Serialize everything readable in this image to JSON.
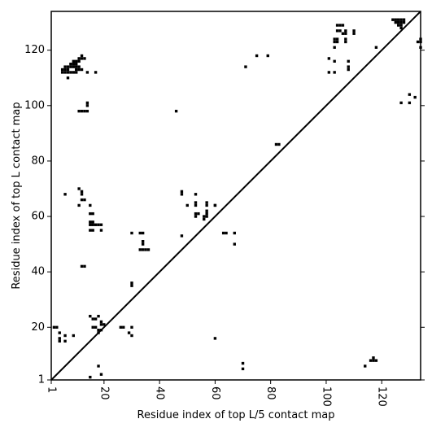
{
  "chart_data": {
    "type": "scatter",
    "title": "",
    "xlabel": "Residue index of top L/5 contact map",
    "ylabel": "Residue index of top L contact map",
    "xlim": [
      1,
      134
    ],
    "ylim": [
      1,
      134
    ],
    "x_ticks": [
      1,
      20,
      40,
      60,
      80,
      100,
      120
    ],
    "y_ticks": [
      1,
      20,
      40,
      60,
      80,
      100,
      120
    ],
    "x_tick_labels": [
      "1",
      "20",
      "40",
      "60",
      "80",
      "100",
      "120"
    ],
    "y_tick_labels": [
      "1",
      "20",
      "40",
      "60",
      "80",
      "100",
      "120"
    ],
    "grid": false,
    "diagonal": true,
    "marker_color": "#000000",
    "series": [
      {
        "points": [
          [
            15,
            2
          ],
          [
            19,
            3
          ],
          [
            18,
            6
          ],
          [
            70,
            5
          ],
          [
            70,
            7
          ],
          [
            114,
            6
          ],
          [
            116,
            8
          ],
          [
            117,
            8
          ],
          [
            118,
            8
          ],
          [
            117,
            9
          ],
          [
            2,
            20
          ],
          [
            3,
            20
          ],
          [
            4,
            15
          ],
          [
            4,
            16
          ],
          [
            4,
            18
          ],
          [
            6,
            15
          ],
          [
            6,
            17
          ],
          [
            9,
            17
          ],
          [
            16,
            20
          ],
          [
            17,
            20
          ],
          [
            18,
            18
          ],
          [
            18,
            19
          ],
          [
            19,
            19
          ],
          [
            19,
            22
          ],
          [
            16,
            23
          ],
          [
            17,
            23
          ],
          [
            15,
            24
          ],
          [
            18,
            24
          ],
          [
            19,
            21
          ],
          [
            20,
            21
          ],
          [
            26,
            20
          ],
          [
            27,
            20
          ],
          [
            30,
            17
          ],
          [
            30,
            20
          ],
          [
            29,
            18
          ],
          [
            30,
            35
          ],
          [
            30,
            36
          ],
          [
            60,
            16
          ],
          [
            33,
            48
          ],
          [
            34,
            48
          ],
          [
            34,
            50
          ],
          [
            34,
            51
          ],
          [
            35,
            48
          ],
          [
            36,
            48
          ],
          [
            30,
            54
          ],
          [
            33,
            54
          ],
          [
            34,
            54
          ],
          [
            15,
            55
          ],
          [
            16,
            55
          ],
          [
            19,
            55
          ],
          [
            15,
            57
          ],
          [
            16,
            57
          ],
          [
            17,
            57
          ],
          [
            18,
            57
          ],
          [
            19,
            57
          ],
          [
            15,
            58
          ],
          [
            16,
            58
          ],
          [
            15,
            61
          ],
          [
            16,
            61
          ],
          [
            11,
            64
          ],
          [
            6,
            68
          ],
          [
            12,
            66
          ],
          [
            13,
            66
          ],
          [
            11,
            70
          ],
          [
            12,
            68
          ],
          [
            12,
            69
          ],
          [
            15,
            64
          ],
          [
            12,
            42
          ],
          [
            13,
            42
          ],
          [
            48,
            53
          ],
          [
            48,
            68
          ],
          [
            48,
            69
          ],
          [
            50,
            64
          ],
          [
            53,
            60
          ],
          [
            53,
            61
          ],
          [
            54,
            61
          ],
          [
            53,
            64
          ],
          [
            53,
            65
          ],
          [
            53,
            68
          ],
          [
            56,
            60
          ],
          [
            56,
            59
          ],
          [
            57,
            60
          ],
          [
            57,
            61
          ],
          [
            57,
            62
          ],
          [
            57,
            64
          ],
          [
            57,
            65
          ],
          [
            60,
            64
          ],
          [
            63,
            54
          ],
          [
            64,
            54
          ],
          [
            67,
            50
          ],
          [
            67,
            54
          ],
          [
            60,
            64
          ],
          [
            11,
            98
          ],
          [
            12,
            98
          ],
          [
            13,
            98
          ],
          [
            14,
            98
          ],
          [
            14,
            100
          ],
          [
            14,
            101
          ],
          [
            14,
            112
          ],
          [
            17,
            112
          ],
          [
            7,
            110
          ],
          [
            5,
            112
          ],
          [
            6,
            112
          ],
          [
            7,
            112
          ],
          [
            8,
            112
          ],
          [
            9,
            112
          ],
          [
            10,
            112
          ],
          [
            5,
            113
          ],
          [
            6,
            113
          ],
          [
            7,
            113
          ],
          [
            10,
            113
          ],
          [
            11,
            113
          ],
          [
            12,
            113
          ],
          [
            6,
            114
          ],
          [
            7,
            114
          ],
          [
            8,
            114
          ],
          [
            9,
            114
          ],
          [
            10,
            114
          ],
          [
            11,
            114
          ],
          [
            8,
            115
          ],
          [
            9,
            115
          ],
          [
            10,
            115
          ],
          [
            9,
            116
          ],
          [
            10,
            116
          ],
          [
            11,
            116
          ],
          [
            11,
            117
          ],
          [
            12,
            117
          ],
          [
            12,
            118
          ],
          [
            13,
            117
          ],
          [
            46,
            98
          ],
          [
            71,
            114
          ],
          [
            75,
            118
          ],
          [
            79,
            118
          ],
          [
            82,
            86
          ],
          [
            83,
            86
          ],
          [
            101,
            112
          ],
          [
            101,
            117
          ],
          [
            103,
            112
          ],
          [
            103,
            116
          ],
          [
            103,
            121
          ],
          [
            103,
            123
          ],
          [
            104,
            123
          ],
          [
            103,
            124
          ],
          [
            104,
            124
          ],
          [
            104,
            127
          ],
          [
            105,
            127
          ],
          [
            104,
            129
          ],
          [
            105,
            129
          ],
          [
            106,
            129
          ],
          [
            107,
            123
          ],
          [
            107,
            124
          ],
          [
            106,
            126
          ],
          [
            107,
            126
          ],
          [
            107,
            127
          ],
          [
            108,
            113
          ],
          [
            108,
            114
          ],
          [
            108,
            116
          ],
          [
            110,
            126
          ],
          [
            110,
            127
          ],
          [
            118,
            121
          ],
          [
            127,
            101
          ],
          [
            130,
            101
          ],
          [
            130,
            104
          ],
          [
            132,
            103
          ],
          [
            134,
            121
          ],
          [
            134,
            123
          ],
          [
            134,
            124
          ],
          [
            133,
            123
          ],
          [
            124,
            131
          ],
          [
            125,
            130
          ],
          [
            126,
            130
          ],
          [
            127,
            130
          ],
          [
            126,
            129
          ],
          [
            127,
            129
          ],
          [
            126,
            131
          ],
          [
            127,
            131
          ],
          [
            128,
            131
          ],
          [
            128,
            130
          ],
          [
            127,
            128
          ],
          [
            125,
            131
          ]
        ]
      }
    ]
  }
}
